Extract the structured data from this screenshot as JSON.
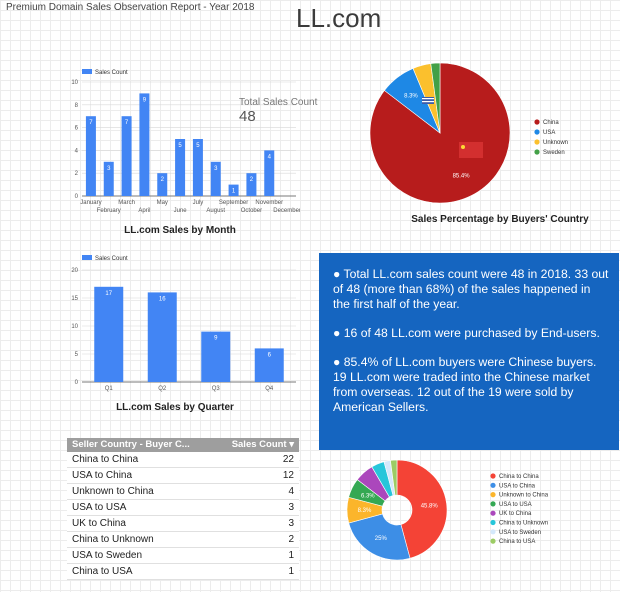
{
  "report": {
    "subtitle": "Premium Domain Sales Observation Report - Year 2018",
    "title": "LL.com"
  },
  "scorecard": {
    "label": "Total Sales Count",
    "value": "48"
  },
  "summary": {
    "p1": "● Total LL.com sales count were 48 in 2018. 33 out of 48 (more than 68%) of the sales happened in the first half of the year.",
    "p2": "● 16 of 48 LL.com were purchased by End-users.",
    "p3": "● 85.4% of LL.com buyers were Chinese buyers. 19 LL.com were traded into the Chinese market from overseas. 12 out of the 19 were sold by American Sellers."
  },
  "seller_table": {
    "header": {
      "col1": "Seller Country - Buyer C...",
      "col2": "Sales Count ▾"
    },
    "rows": [
      {
        "label": "China to China",
        "value": "22"
      },
      {
        "label": "USA to China",
        "value": "12"
      },
      {
        "label": "Unknown to China",
        "value": "4"
      },
      {
        "label": "USA to USA",
        "value": "3"
      },
      {
        "label": "UK to China",
        "value": "3"
      },
      {
        "label": "China to Unknown",
        "value": "2"
      },
      {
        "label": "USA to Sweden",
        "value": "1"
      },
      {
        "label": "China to USA",
        "value": "1"
      }
    ]
  },
  "chart_data": [
    {
      "type": "bar",
      "title": "LL.com Sales by Month",
      "legend": "Sales Count",
      "categories": [
        "January",
        "February",
        "March",
        "April",
        "May",
        "June",
        "July",
        "August",
        "September",
        "October",
        "November",
        "December"
      ],
      "values": [
        7,
        3,
        7,
        9,
        2,
        5,
        5,
        3,
        1,
        2,
        4,
        0
      ],
      "ylim": [
        0,
        10
      ],
      "yticks": [
        0,
        2,
        4,
        6,
        8,
        10
      ],
      "color": "#4285f4"
    },
    {
      "type": "bar",
      "title": "LL.com Sales by Quarter",
      "legend": "Sales Count",
      "categories": [
        "Q1",
        "Q2",
        "Q3",
        "Q4"
      ],
      "values": [
        17,
        16,
        9,
        6
      ],
      "ylim": [
        0,
        20
      ],
      "yticks": [
        0,
        5,
        10,
        15,
        20
      ],
      "color": "#4285f4"
    },
    {
      "type": "pie",
      "title": "Sales Percentage by Buyers' Country",
      "slices": [
        {
          "label": "China",
          "value": 85.4,
          "color": "#b71c1c",
          "pct_label": "85.4%"
        },
        {
          "label": "USA",
          "value": 8.3,
          "color": "#1e88e5",
          "pct_label": "8.3%"
        },
        {
          "label": "Unknown",
          "value": 4.2,
          "color": "#fbc02d",
          "pct_label": ""
        },
        {
          "label": "Sweden",
          "value": 2.1,
          "color": "#43a047",
          "pct_label": ""
        }
      ]
    },
    {
      "type": "pie",
      "title": "",
      "slices": [
        {
          "label": "China to China",
          "value": 45.8,
          "color": "#f44336",
          "pct_label": "45.8%"
        },
        {
          "label": "USA to China",
          "value": 25,
          "color": "#3d8ee6",
          "pct_label": "25%"
        },
        {
          "label": "Unknown to China",
          "value": 8.3,
          "color": "#fbb52b",
          "pct_label": "8.3%"
        },
        {
          "label": "USA to USA",
          "value": 6.3,
          "color": "#34a853",
          "pct_label": "6.3%"
        },
        {
          "label": "UK to China",
          "value": 6.2,
          "color": "#ab47bc",
          "pct_label": ""
        },
        {
          "label": "China to Unknown",
          "value": 4.2,
          "color": "#26c6da",
          "pct_label": ""
        },
        {
          "label": "USA to Sweden",
          "value": 2.1,
          "color": "#d4e8fb",
          "pct_label": ""
        },
        {
          "label": "China to USA",
          "value": 2.1,
          "color": "#9ccc65",
          "pct_label": ""
        }
      ]
    }
  ]
}
